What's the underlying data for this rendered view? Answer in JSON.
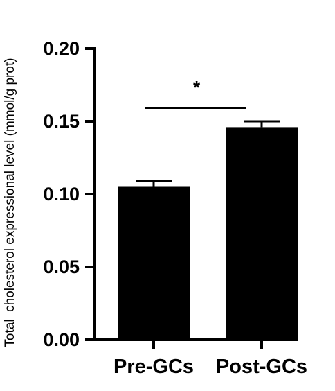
{
  "chart_data": {
    "type": "bar",
    "categories": [
      "Pre-GCs",
      "Post-GCs"
    ],
    "values": [
      0.105,
      0.146
    ],
    "errors": [
      0.004,
      0.004
    ],
    "ylabel": "Total  cholesterol expressional level (mmol/g prot)",
    "xlabel": "",
    "ylim": [
      0,
      0.2
    ],
    "yticks": [
      "0.00",
      "0.05",
      "0.10",
      "0.15",
      "0.20"
    ],
    "ytick_values": [
      0,
      0.05,
      0.1,
      0.15,
      0.2
    ],
    "grid": false,
    "bar_color": "#000000",
    "annotations": [
      {
        "text": "*",
        "between": [
          "Pre-GCs",
          "Post-GCs"
        ],
        "meaning": "significance bracket"
      }
    ]
  }
}
